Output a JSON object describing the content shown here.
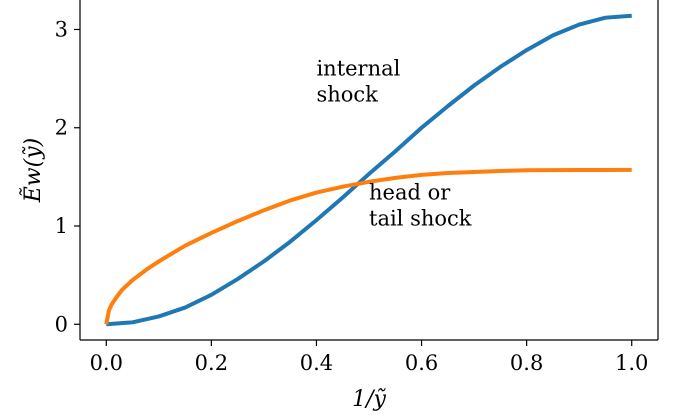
{
  "chart_data": {
    "type": "line",
    "title": "",
    "xlabel": "1/ỹ",
    "ylabel": "Ẽw(ỹ)",
    "xlim": [
      -0.05,
      1.05
    ],
    "ylim": [
      -0.16,
      3.3
    ],
    "x_ticks": [
      0.0,
      0.2,
      0.4,
      0.6,
      0.8,
      1.0
    ],
    "x_tick_labels": [
      "0.0",
      "0.2",
      "0.4",
      "0.6",
      "0.8",
      "1.0"
    ],
    "y_ticks": [
      0,
      1,
      2,
      3
    ],
    "y_tick_labels": [
      "0",
      "1",
      "2",
      "3"
    ],
    "grid": false,
    "legend": "none",
    "series": [
      {
        "color": "#1f77b4",
        "x": [
          0.0,
          0.05,
          0.1,
          0.15,
          0.2,
          0.25,
          0.3,
          0.35,
          0.4,
          0.45,
          0.5,
          0.55,
          0.6,
          0.65,
          0.7,
          0.75,
          0.8,
          0.85,
          0.9,
          0.95,
          1.0
        ],
        "y": [
          0.0,
          0.02,
          0.08,
          0.17,
          0.3,
          0.46,
          0.64,
          0.84,
          1.06,
          1.29,
          1.53,
          1.76,
          2.0,
          2.22,
          2.43,
          2.62,
          2.79,
          2.94,
          3.05,
          3.12,
          3.14
        ]
      },
      {
        "color": "#ff7f0e",
        "x": [
          0.0,
          0.005,
          0.01,
          0.02,
          0.03,
          0.05,
          0.08,
          0.1,
          0.15,
          0.2,
          0.25,
          0.3,
          0.35,
          0.4,
          0.45,
          0.5,
          0.55,
          0.6,
          0.65,
          0.7,
          0.75,
          0.8,
          0.85,
          0.9,
          0.95,
          1.0
        ],
        "y": [
          0.0,
          0.14,
          0.2,
          0.28,
          0.35,
          0.45,
          0.57,
          0.64,
          0.8,
          0.93,
          1.05,
          1.16,
          1.26,
          1.34,
          1.4,
          1.45,
          1.49,
          1.52,
          1.54,
          1.55,
          1.56,
          1.567,
          1.569,
          1.57,
          1.57,
          1.571
        ]
      }
    ],
    "annotations": [
      {
        "lines": [
          "internal",
          "shock"
        ],
        "x": 0.4,
        "y": 2.53
      },
      {
        "lines": [
          "head or",
          "tail shock"
        ],
        "x": 0.5,
        "y": 1.27
      }
    ]
  }
}
